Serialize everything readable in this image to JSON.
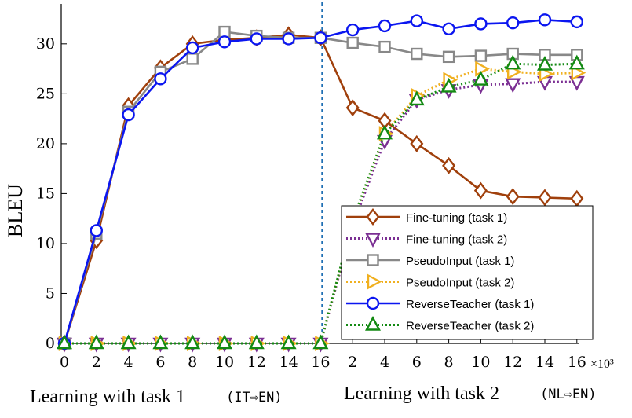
{
  "chart_data": {
    "type": "line",
    "ylabel": "BLEU",
    "x_multiplier": "×10³",
    "ylim": [
      0,
      34
    ],
    "yticks": [
      0,
      5,
      10,
      15,
      20,
      25,
      30
    ],
    "x_tick_labels": [
      "0",
      "2",
      "4",
      "6",
      "8",
      "10",
      "12",
      "14",
      "16",
      "2",
      "4",
      "6",
      "8",
      "10",
      "12",
      "14",
      "16"
    ],
    "task_boundary_index": 8,
    "phase_labels": [
      {
        "text": "Learning with task 1",
        "pair": "(IT⇨EN)"
      },
      {
        "text": "Learning with task 2",
        "pair": "(NL⇨EN)"
      }
    ],
    "legend_position": "lower-right",
    "series": [
      {
        "name": "Fine-tuning (task 1)",
        "color": "#a0400c",
        "marker": "diamond",
        "dash": "solid",
        "values": [
          0,
          10.3,
          23.8,
          27.6,
          30.0,
          30.4,
          30.6,
          30.9,
          30.6,
          23.6,
          22.3,
          20.0,
          17.8,
          15.3,
          14.7,
          14.6,
          14.5
        ]
      },
      {
        "name": "Fine-tuning (task 2)",
        "color": "#7b2f93",
        "marker": "triangle-down",
        "dash": "dotted",
        "values": [
          0,
          0,
          0,
          0,
          0,
          0,
          0,
          0,
          0,
          11.8,
          20.3,
          24.4,
          25.4,
          25.9,
          26.0,
          26.2,
          26.2
        ]
      },
      {
        "name": "PseudoInput (task 1)",
        "color": "#888888",
        "marker": "square",
        "dash": "solid",
        "values": [
          0,
          11.0,
          23.2,
          27.2,
          28.5,
          31.2,
          30.8,
          30.6,
          30.6,
          30.1,
          29.7,
          29.0,
          28.7,
          28.8,
          29.0,
          28.9,
          28.9
        ]
      },
      {
        "name": "PseudoInput (task 2)",
        "color": "#f0b020",
        "marker": "triangle-right",
        "dash": "dotted",
        "values": [
          0,
          0,
          0,
          0,
          0,
          0,
          0,
          0,
          0,
          12.2,
          21.0,
          24.8,
          26.4,
          27.5,
          27.2,
          27.0,
          27.1
        ]
      },
      {
        "name": "ReverseTeacher (task 1)",
        "color": "#0b16f0",
        "marker": "circle",
        "dash": "solid",
        "values": [
          0,
          11.3,
          22.9,
          26.5,
          29.6,
          30.2,
          30.5,
          30.5,
          30.6,
          31.4,
          31.8,
          32.3,
          31.5,
          32.0,
          32.1,
          32.4,
          32.2
        ]
      },
      {
        "name": "ReverseTeacher (task 2)",
        "color": "#138a13",
        "marker": "triangle-up",
        "dash": "dotted",
        "values": [
          0,
          0,
          0,
          0,
          0,
          0,
          0,
          0,
          0,
          12.3,
          21.0,
          24.4,
          25.7,
          26.4,
          28.0,
          27.9,
          28.0
        ]
      }
    ]
  }
}
